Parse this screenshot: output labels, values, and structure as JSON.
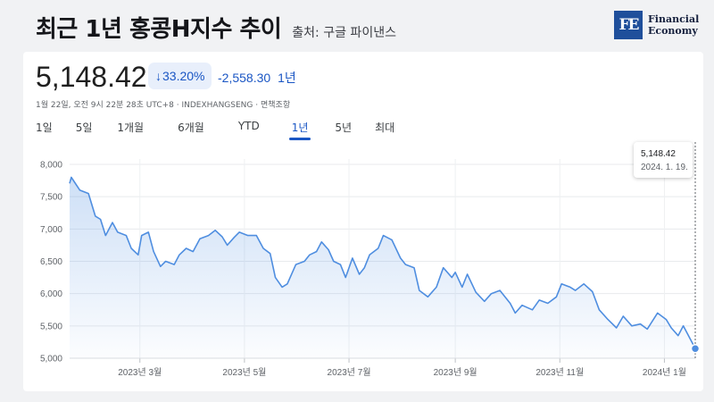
{
  "header": {
    "title": "최근 1년 홍콩H지수 추이",
    "source": "출처: 구글 파이낸스"
  },
  "logo": {
    "mark": "FE",
    "line1": "Financial",
    "line2": "Economy"
  },
  "quote": {
    "price": "5,148.42",
    "change_pct": "33.20%",
    "change_abs": "-2,558.30",
    "change_period": "1년",
    "meta": "1월 22일, 오전 9시 22분 28초 UTC+8 · INDEXHANGSENG · 면책조항"
  },
  "ranges": [
    "1일",
    "5일",
    "1개월",
    "6개월",
    "YTD",
    "1년",
    "5년",
    "최대"
  ],
  "active_range": "1년",
  "colors": {
    "line": "#4f8ee0",
    "accent": "#1a56c4",
    "brand": "#1f4f9b"
  },
  "tooltip": {
    "value": "5,148.42",
    "date": "2024. 1. 19."
  },
  "chart_data": {
    "type": "area",
    "ylim": [
      5000,
      8000
    ],
    "yticks": [
      5000,
      5500,
      6000,
      6500,
      7000,
      7500,
      8000
    ],
    "ytick_labels": [
      "5,000",
      "5,500",
      "6,000",
      "6,500",
      "7,000",
      "7,500",
      "8,000"
    ],
    "xticks": [
      "2023-03-01",
      "2023-05-01",
      "2023-07-01",
      "2023-09-01",
      "2023-11-01",
      "2024-01-01"
    ],
    "xtick_labels": [
      "2023년 3월",
      "2023년 5월",
      "2023년 7월",
      "2023년 9월",
      "2023년 11월",
      "2024년 1월"
    ],
    "grid": true,
    "series": [
      {
        "x": [
          "2023-01-19",
          "2023-01-20",
          "2023-01-25",
          "2023-01-30",
          "2023-02-03",
          "2023-02-06",
          "2023-02-09",
          "2023-02-13",
          "2023-02-16",
          "2023-02-21",
          "2023-02-24",
          "2023-02-28",
          "2023-03-02",
          "2023-03-06",
          "2023-03-09",
          "2023-03-13",
          "2023-03-16",
          "2023-03-21",
          "2023-03-24",
          "2023-03-28",
          "2023-04-01",
          "2023-04-05",
          "2023-04-10",
          "2023-04-14",
          "2023-04-18",
          "2023-04-21",
          "2023-04-25",
          "2023-04-28",
          "2023-05-03",
          "2023-05-08",
          "2023-05-12",
          "2023-05-16",
          "2023-05-19",
          "2023-05-23",
          "2023-05-26",
          "2023-05-31",
          "2023-06-05",
          "2023-06-08",
          "2023-06-12",
          "2023-06-15",
          "2023-06-19",
          "2023-06-22",
          "2023-06-26",
          "2023-06-29",
          "2023-07-03",
          "2023-07-07",
          "2023-07-10",
          "2023-07-13",
          "2023-07-18",
          "2023-07-21",
          "2023-07-26",
          "2023-07-31",
          "2023-08-03",
          "2023-08-08",
          "2023-08-11",
          "2023-08-16",
          "2023-08-21",
          "2023-08-25",
          "2023-08-30",
          "2023-09-01",
          "2023-09-05",
          "2023-09-08",
          "2023-09-13",
          "2023-09-18",
          "2023-09-22",
          "2023-09-27",
          "2023-10-03",
          "2023-10-06",
          "2023-10-10",
          "2023-10-16",
          "2023-10-20",
          "2023-10-25",
          "2023-10-30",
          "2023-11-02",
          "2023-11-07",
          "2023-11-10",
          "2023-11-15",
          "2023-11-20",
          "2023-11-24",
          "2023-11-29",
          "2023-12-04",
          "2023-12-08",
          "2023-12-13",
          "2023-12-18",
          "2023-12-22",
          "2023-12-28",
          "2024-01-02",
          "2024-01-05",
          "2024-01-09",
          "2024-01-12",
          "2024-01-17",
          "2024-01-19"
        ],
        "y": [
          7706,
          7800,
          7600,
          7550,
          7200,
          7150,
          6900,
          7100,
          6950,
          6900,
          6700,
          6600,
          6900,
          6950,
          6650,
          6420,
          6500,
          6450,
          6600,
          6700,
          6650,
          6850,
          6900,
          6980,
          6880,
          6750,
          6870,
          6950,
          6900,
          6900,
          6700,
          6620,
          6250,
          6100,
          6150,
          6450,
          6500,
          6600,
          6650,
          6800,
          6680,
          6500,
          6450,
          6250,
          6550,
          6300,
          6400,
          6600,
          6700,
          6900,
          6830,
          6550,
          6450,
          6400,
          6050,
          5950,
          6100,
          6400,
          6250,
          6330,
          6100,
          6300,
          6020,
          5880,
          6000,
          6050,
          5850,
          5700,
          5820,
          5750,
          5900,
          5850,
          5950,
          6150,
          6100,
          6050,
          6150,
          6030,
          5750,
          5600,
          5470,
          5650,
          5500,
          5530,
          5450,
          5700,
          5600,
          5470,
          5350,
          5500,
          5250,
          5148.42
        ]
      }
    ]
  }
}
